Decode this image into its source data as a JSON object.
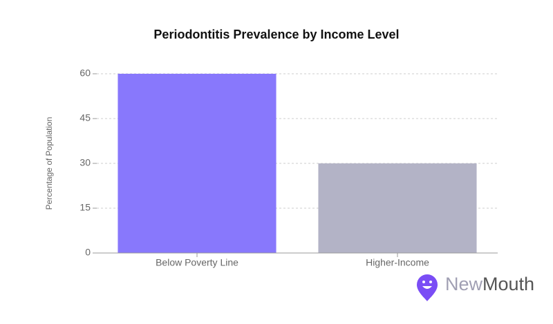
{
  "chart_data": {
    "type": "bar",
    "title": "Periodontitis Prevalence by Income Level",
    "y_label": "Percentage of Population",
    "categories": [
      "Below Poverty Line",
      "Higher-Income"
    ],
    "values": [
      60,
      30
    ],
    "colors": [
      "#8878fc",
      "#b3b3c6"
    ],
    "ylim": [
      0,
      60
    ],
    "yticks": [
      0,
      15,
      30,
      45,
      60
    ],
    "grid": true
  },
  "logo": {
    "first": "New",
    "second": "Mouth"
  }
}
